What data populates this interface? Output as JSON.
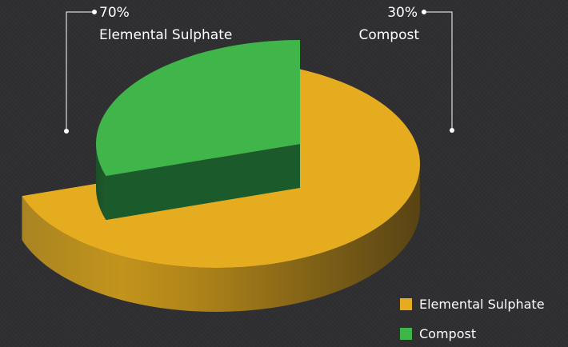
{
  "chart_data": {
    "type": "pie",
    "categories": [
      "Elemental Sulphate",
      "Compost"
    ],
    "values": [
      70,
      30
    ],
    "value_labels": [
      "70%",
      "30%"
    ],
    "colors": [
      "#e6ac20",
      "#3fb54a"
    ],
    "style": "3d-exploded",
    "legend": {
      "placement": "bottom-right",
      "entries": [
        "Elemental Sulphate",
        "Compost"
      ]
    }
  }
}
